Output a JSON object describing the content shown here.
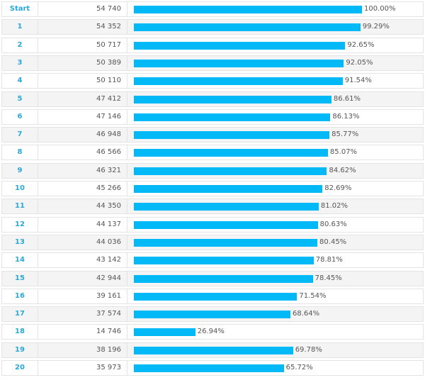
{
  "chart_data": {
    "type": "bar",
    "orientation": "horizontal",
    "title": "",
    "xlabel": "",
    "ylabel": "",
    "xlim": [
      0,
      100
    ],
    "bar_color": "#00b9f6",
    "label_color": "#2aa8d8",
    "categories": [
      "Start",
      "1",
      "2",
      "3",
      "4",
      "5",
      "6",
      "7",
      "8",
      "9",
      "10",
      "11",
      "12",
      "13",
      "14",
      "15",
      "16",
      "17",
      "18",
      "19",
      "20"
    ],
    "counts": [
      "54 740",
      "54 352",
      "50 717",
      "50 389",
      "50 110",
      "47 412",
      "47 146",
      "46 948",
      "46 566",
      "46 321",
      "45 266",
      "44 350",
      "44 137",
      "44 036",
      "43 142",
      "42 944",
      "39 161",
      "37 574",
      "14 746",
      "38 196",
      "35 973"
    ],
    "values": [
      100.0,
      99.29,
      92.65,
      92.05,
      91.54,
      86.61,
      86.13,
      85.77,
      85.07,
      84.62,
      82.69,
      81.02,
      80.63,
      80.45,
      78.81,
      78.45,
      71.54,
      68.64,
      26.94,
      69.78,
      65.72
    ],
    "value_labels": [
      "100.00%",
      "99.29%",
      "92.65%",
      "92.05%",
      "91.54%",
      "86.61%",
      "86.13%",
      "85.77%",
      "85.07%",
      "84.62%",
      "82.69%",
      "81.02%",
      "80.63%",
      "80.45%",
      "78.81%",
      "78.45%",
      "71.54%",
      "68.64%",
      "26.94%",
      "69.78%",
      "65.72%"
    ]
  }
}
